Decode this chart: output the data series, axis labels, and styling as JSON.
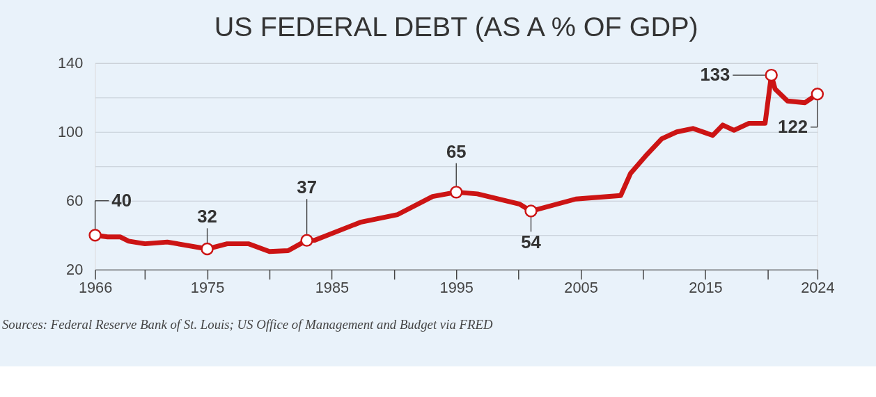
{
  "chart_data": {
    "type": "line",
    "title": "US FEDERAL DEBT (AS A % OF GDP)",
    "x": [
      1966,
      1967,
      1968,
      1968.7,
      1970,
      1971.8,
      1975,
      1976.6,
      1978.3,
      1980,
      1981.5,
      1983,
      1983.6,
      1987.3,
      1990.3,
      1993.1,
      1995,
      1996.7,
      2000.1,
      2001,
      2004.6,
      2008.2,
      2009,
      2010.2,
      2011.5,
      2012.7,
      2014,
      2015.6,
      2016.4,
      2017.3,
      2018.5,
      2019.8,
      2020.3,
      2020.6,
      2021.6,
      2023,
      2024
    ],
    "series": [
      {
        "color": "#cc1414",
        "values": [
          40,
          39,
          39,
          36.5,
          35,
          36,
          32,
          35,
          35,
          30.5,
          31,
          37,
          37,
          47.5,
          52,
          62.5,
          65,
          64,
          58,
          54,
          61,
          63,
          76,
          86,
          96,
          100,
          102,
          98,
          104,
          101,
          105,
          105,
          133,
          125,
          118,
          117,
          122
        ]
      }
    ],
    "xlim": [
      1966,
      2024
    ],
    "xticks": [
      1966,
      {
        "value": 1970,
        "label": null
      },
      1975,
      {
        "value": 1980,
        "label": null
      },
      1985,
      {
        "value": 1990,
        "label": null
      },
      1995,
      {
        "value": 2000,
        "label": null
      },
      2005,
      {
        "value": 2010,
        "label": null
      },
      2015,
      {
        "value": 2020,
        "label": null
      },
      2024
    ],
    "ylim": [
      20,
      140
    ],
    "yticks": [
      20,
      {
        "value": 40,
        "label": null
      },
      60,
      {
        "value": 80,
        "label": null
      },
      100,
      {
        "value": 120,
        "label": null
      },
      140
    ],
    "grid": "y",
    "marker": "none",
    "line_style": "solid",
    "annotations": [
      {
        "text": "40",
        "x": 1966,
        "y": 40
      },
      {
        "text": "32",
        "x": 1975,
        "y": 32
      },
      {
        "text": "37",
        "x": 1983,
        "y": 37
      },
      {
        "text": "65",
        "x": 1995,
        "y": 65
      },
      {
        "text": "54",
        "x": 2001,
        "y": 54
      },
      {
        "text": "133",
        "x": 2020.3,
        "y": 133
      },
      {
        "text": "122",
        "x": 2024,
        "y": 122
      },
      "Sources: Federal Reserve Bank of St. Louis; US Office of Management and Budget via FRED"
    ]
  }
}
